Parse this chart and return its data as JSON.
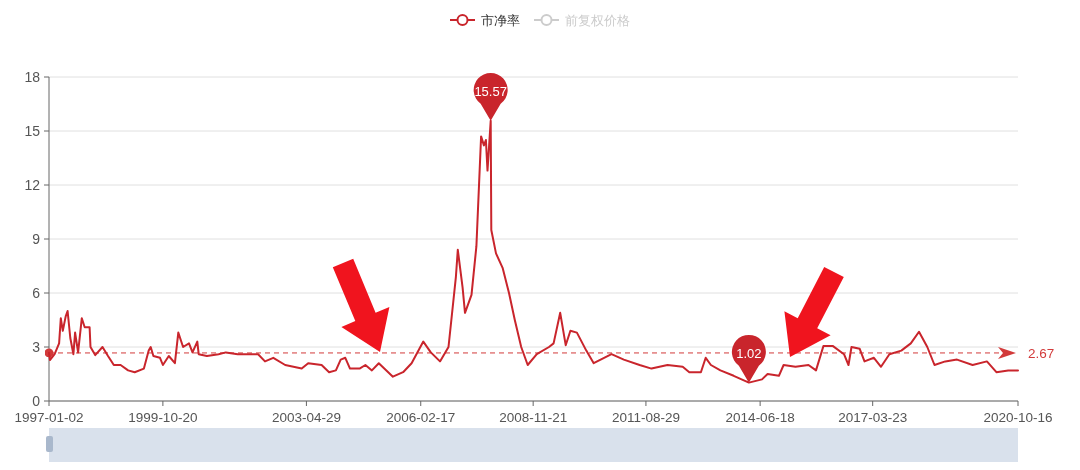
{
  "chart_data": {
    "type": "line",
    "legend": "top",
    "grid": "y",
    "marker": "none",
    "line_style": "solid",
    "xlim": [
      "1997-01-02",
      "2020-10-16"
    ],
    "xticks": [
      "1997-01-02",
      "1999-10-20",
      "2003-04-29",
      "2006-02-17",
      "2008-11-21",
      "2011-08-29",
      "2014-06-18",
      "2017-03-23",
      "2020-10-16"
    ],
    "ylim": [
      0,
      18
    ],
    "yticks": [
      0,
      3,
      6,
      9,
      12,
      15,
      18
    ],
    "ref_lines": [
      {
        "axis": "y",
        "value": 2.67,
        "label": "2.67",
        "color": "#d23a3a",
        "line_style": "dashed"
      }
    ],
    "annotations": [
      {
        "text": "15.57",
        "x": "2007-11-06",
        "y": 15.57
      },
      {
        "text": "1.02",
        "x": "2014-03-09",
        "y": 1.02
      }
    ],
    "series": [
      {
        "name": "市净率",
        "color": "#c9252c",
        "x": [
          "1997-01-02",
          "1997-01-10",
          "1997-02-21",
          "1997-04-03",
          "1997-04-18",
          "1997-05-06",
          "1997-06-01",
          "1997-06-18",
          "1997-07-12",
          "1997-08-09",
          "1997-08-24",
          "1997-09-20",
          "1997-10-23",
          "1997-11-18",
          "1998-01-01",
          "1998-01-09",
          "1998-02-20",
          "1998-04-27",
          "1998-06-15",
          "1998-08-06",
          "1998-10-06",
          "1998-12-12",
          "1999-02-09",
          "1999-05-03",
          "1999-06-15",
          "1999-07-03",
          "1999-07-27",
          "1999-09-24",
          "1999-10-20",
          "1999-12-12",
          "2000-02-05",
          "2000-03-06",
          "2000-04-18",
          "2000-06-10",
          "2000-07-12",
          "2000-08-24",
          "2000-09-05",
          "2000-11-18",
          "2001-03-03",
          "2001-05-06",
          "2001-08-21",
          "2002-02-20",
          "2002-04-23",
          "2002-07-06",
          "2002-10-21",
          "2003-03-18",
          "2003-05-15",
          "2003-09-12",
          "2003-11-18",
          "2004-01-18",
          "2004-03-01",
          "2004-04-12",
          "2004-05-24",
          "2004-08-18",
          "2004-10-09",
          "2004-12-06",
          "2005-02-06",
          "2005-06-12",
          "2005-09-12",
          "2005-11-27",
          "2006-03-12",
          "2006-05-18",
          "2006-08-09",
          "2006-10-24",
          "2006-12-29",
          "2007-01-15",
          "2007-02-27",
          "2007-03-21",
          "2007-05-18",
          "2007-07-01",
          "2007-08-12",
          "2007-09-06",
          "2007-09-24",
          "2007-10-09",
          "2007-11-06",
          "2007-11-12",
          "2007-12-24",
          "2008-02-21",
          "2008-04-18",
          "2008-06-09",
          "2008-08-06",
          "2008-10-03",
          "2008-12-24",
          "2009-04-12",
          "2009-05-23",
          "2009-07-21",
          "2009-09-09",
          "2009-10-21",
          "2009-12-18",
          "2010-03-12",
          "2010-05-18",
          "2010-10-24",
          "2011-02-12",
          "2011-07-03",
          "2011-10-18",
          "2012-03-09",
          "2012-07-24",
          "2012-09-21",
          "2013-01-03",
          "2013-02-15",
          "2013-04-03",
          "2013-06-27",
          "2013-10-24",
          "2014-03-09",
          "2014-07-05",
          "2014-08-24",
          "2014-12-03",
          "2015-01-14",
          "2015-05-01",
          "2015-08-26",
          "2015-11-01",
          "2016-01-06",
          "2016-04-01",
          "2016-07-09",
          "2016-08-18",
          "2016-09-14",
          "2016-11-27",
          "2017-01-09",
          "2017-04-03",
          "2017-06-06",
          "2017-08-20",
          "2017-12-05",
          "2018-02-28",
          "2018-05-12",
          "2018-07-26",
          "2018-09-28",
          "2019-01-03",
          "2019-04-18",
          "2019-09-05",
          "2020-01-11",
          "2020-04-05",
          "2020-07-20",
          "2020-10-16"
        ],
        "values": [
          2.68,
          2.28,
          2.6,
          3.2,
          4.6,
          3.9,
          4.7,
          5.0,
          3.5,
          2.6,
          3.8,
          2.7,
          4.6,
          4.1,
          4.1,
          3.0,
          2.55,
          3.0,
          2.5,
          2.0,
          2.0,
          1.7,
          1.6,
          1.8,
          2.8,
          3.0,
          2.5,
          2.4,
          2.0,
          2.5,
          2.1,
          3.8,
          3.0,
          3.2,
          2.7,
          3.3,
          2.6,
          2.5,
          2.6,
          2.7,
          2.6,
          2.6,
          2.2,
          2.4,
          2.0,
          1.8,
          2.1,
          2.0,
          1.6,
          1.7,
          2.3,
          2.4,
          1.8,
          1.8,
          2.0,
          1.7,
          2.1,
          1.35,
          1.6,
          2.1,
          3.3,
          2.7,
          2.2,
          3.0,
          6.9,
          8.4,
          6.3,
          4.9,
          5.9,
          8.6,
          14.7,
          14.2,
          14.5,
          12.8,
          15.57,
          9.5,
          8.2,
          7.4,
          6.0,
          4.5,
          3.0,
          2.0,
          2.6,
          3.0,
          3.2,
          4.9,
          3.1,
          3.9,
          3.8,
          2.8,
          2.1,
          2.6,
          2.3,
          2.0,
          1.8,
          2.0,
          1.9,
          1.6,
          1.6,
          2.4,
          2.0,
          1.7,
          1.4,
          1.02,
          1.2,
          1.5,
          1.4,
          2.0,
          1.9,
          2.0,
          1.7,
          3.05,
          3.05,
          2.6,
          2.0,
          3.0,
          2.9,
          2.2,
          2.4,
          1.9,
          2.6,
          2.8,
          3.2,
          3.85,
          3.0,
          2.0,
          2.2,
          2.3,
          2.0,
          2.2,
          1.6,
          1.7,
          1.7
        ]
      },
      {
        "name": "前复权价格",
        "color": "#cccccc",
        "values": [
          null
        ]
      }
    ]
  }
}
